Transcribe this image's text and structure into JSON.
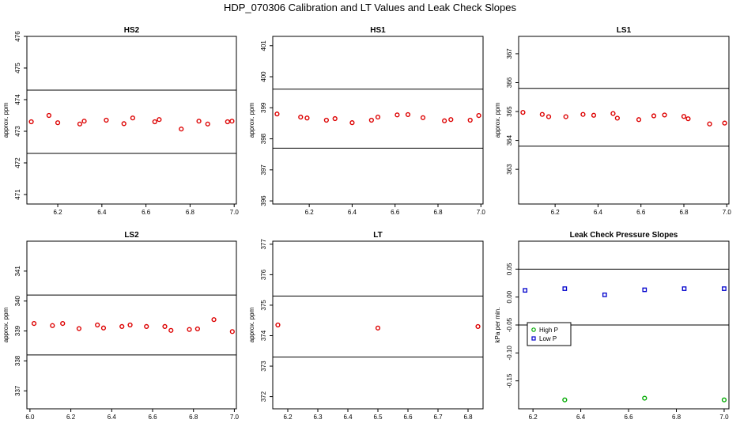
{
  "title": "HDP_070306  Calibration and LT Values and Leak Check Slopes",
  "chart_data": [
    {
      "type": "scatter",
      "title": "HS2",
      "ylabel": "approx. ppm",
      "xlim": [
        6.06,
        7.01
      ],
      "ylim": [
        470.7,
        476.0
      ],
      "xticks": [
        6.2,
        6.4,
        6.6,
        6.8,
        7.0
      ],
      "yticks": [
        471,
        472,
        473,
        474,
        475,
        476
      ],
      "hlines": [
        474.3,
        472.3
      ],
      "color": "#dd0000",
      "series": [
        {
          "x": [
            6.08,
            6.16,
            6.2,
            6.3,
            6.32,
            6.42,
            6.5,
            6.54,
            6.64,
            6.66,
            6.76,
            6.84,
            6.88,
            6.97,
            6.99
          ],
          "y": [
            473.3,
            473.5,
            473.27,
            473.23,
            473.32,
            473.35,
            473.24,
            473.42,
            473.3,
            473.37,
            473.07,
            473.32,
            473.23,
            473.3,
            473.32
          ]
        }
      ]
    },
    {
      "type": "scatter",
      "title": "HS1",
      "ylabel": "approx. ppm",
      "xlim": [
        6.03,
        7.01
      ],
      "ylim": [
        395.9,
        401.3
      ],
      "xticks": [
        6.2,
        6.4,
        6.6,
        6.8,
        7.0
      ],
      "yticks": [
        396,
        397,
        398,
        399,
        400,
        401
      ],
      "hlines": [
        399.6,
        397.7
      ],
      "color": "#dd0000",
      "series": [
        {
          "x": [
            6.05,
            6.16,
            6.19,
            6.28,
            6.32,
            6.4,
            6.49,
            6.52,
            6.61,
            6.66,
            6.73,
            6.83,
            6.86,
            6.95,
            6.99
          ],
          "y": [
            398.8,
            398.7,
            398.67,
            398.6,
            398.65,
            398.52,
            398.6,
            398.7,
            398.77,
            398.78,
            398.68,
            398.58,
            398.62,
            398.6,
            398.75
          ]
        }
      ]
    },
    {
      "type": "scatter",
      "title": "LS1",
      "ylabel": "approx. ppm",
      "xlim": [
        6.03,
        7.01
      ],
      "ylim": [
        361.8,
        367.6
      ],
      "xticks": [
        6.2,
        6.4,
        6.6,
        6.8,
        7.0
      ],
      "yticks": [
        363,
        364,
        365,
        366,
        367
      ],
      "hlines": [
        365.8,
        363.8
      ],
      "color": "#dd0000",
      "series": [
        {
          "x": [
            6.05,
            6.14,
            6.17,
            6.25,
            6.33,
            6.38,
            6.47,
            6.49,
            6.59,
            6.66,
            6.71,
            6.8,
            6.82,
            6.92,
            6.99
          ],
          "y": [
            364.97,
            364.9,
            364.82,
            364.82,
            364.9,
            364.87,
            364.93,
            364.77,
            364.72,
            364.85,
            364.88,
            364.83,
            364.75,
            364.57,
            364.6
          ]
        }
      ]
    },
    {
      "type": "scatter",
      "title": "LS2",
      "ylabel": "approx. ppm",
      "xlim": [
        5.985,
        7.01
      ],
      "ylim": [
        336.4,
        342.0
      ],
      "xticks": [
        6.0,
        6.2,
        6.4,
        6.6,
        6.8,
        7.0
      ],
      "yticks": [
        337,
        338,
        339,
        340,
        341
      ],
      "hlines": [
        340.2,
        338.2
      ],
      "color": "#dd0000",
      "series": [
        {
          "x": [
            6.02,
            6.11,
            6.16,
            6.24,
            6.33,
            6.36,
            6.45,
            6.49,
            6.57,
            6.66,
            6.69,
            6.78,
            6.82,
            6.9,
            6.99
          ],
          "y": [
            339.25,
            339.18,
            339.25,
            339.08,
            339.2,
            339.1,
            339.15,
            339.2,
            339.15,
            339.15,
            339.02,
            339.05,
            339.07,
            339.38,
            338.98
          ]
        }
      ]
    },
    {
      "type": "scatter",
      "title": "LT",
      "ylabel": "approx. ppm",
      "xlim": [
        6.15,
        6.85
      ],
      "ylim": [
        371.6,
        377.1
      ],
      "xticks": [
        6.2,
        6.3,
        6.4,
        6.5,
        6.6,
        6.7,
        6.8
      ],
      "yticks": [
        372,
        373,
        374,
        375,
        376,
        377
      ],
      "hlines": [
        375.3,
        373.3
      ],
      "color": "#dd0000",
      "series": [
        {
          "x": [
            6.167,
            6.5,
            6.833
          ],
          "y": [
            374.35,
            374.25,
            374.3
          ]
        }
      ]
    },
    {
      "type": "scatter",
      "title": "Leak Check Pressure Slopes",
      "ylabel": "kPa per min.",
      "xlim": [
        6.14,
        7.02
      ],
      "ylim": [
        -0.2,
        0.1
      ],
      "xticks": [
        6.2,
        6.4,
        6.6,
        6.8,
        7.0
      ],
      "yticks": [
        -0.15,
        -0.1,
        -0.05,
        0.0,
        0.05
      ],
      "ytick_labels": [
        "-0.15",
        "-0.10",
        "-0.05",
        "0.00",
        "0.05"
      ],
      "hlines": [
        0.05,
        -0.05
      ],
      "legend": "middle-left",
      "series": [
        {
          "name": "High P",
          "color": "#00aa00",
          "x": [
            6.333,
            6.667,
            7.0
          ],
          "y": [
            -0.184,
            -0.181,
            -0.184
          ]
        },
        {
          "name": "Low P",
          "color": "#0000cc",
          "x": [
            6.167,
            6.333,
            6.5,
            6.667,
            6.833,
            7.0
          ],
          "y": [
            0.012,
            0.015,
            0.004,
            0.013,
            0.015,
            0.015
          ]
        }
      ]
    }
  ]
}
